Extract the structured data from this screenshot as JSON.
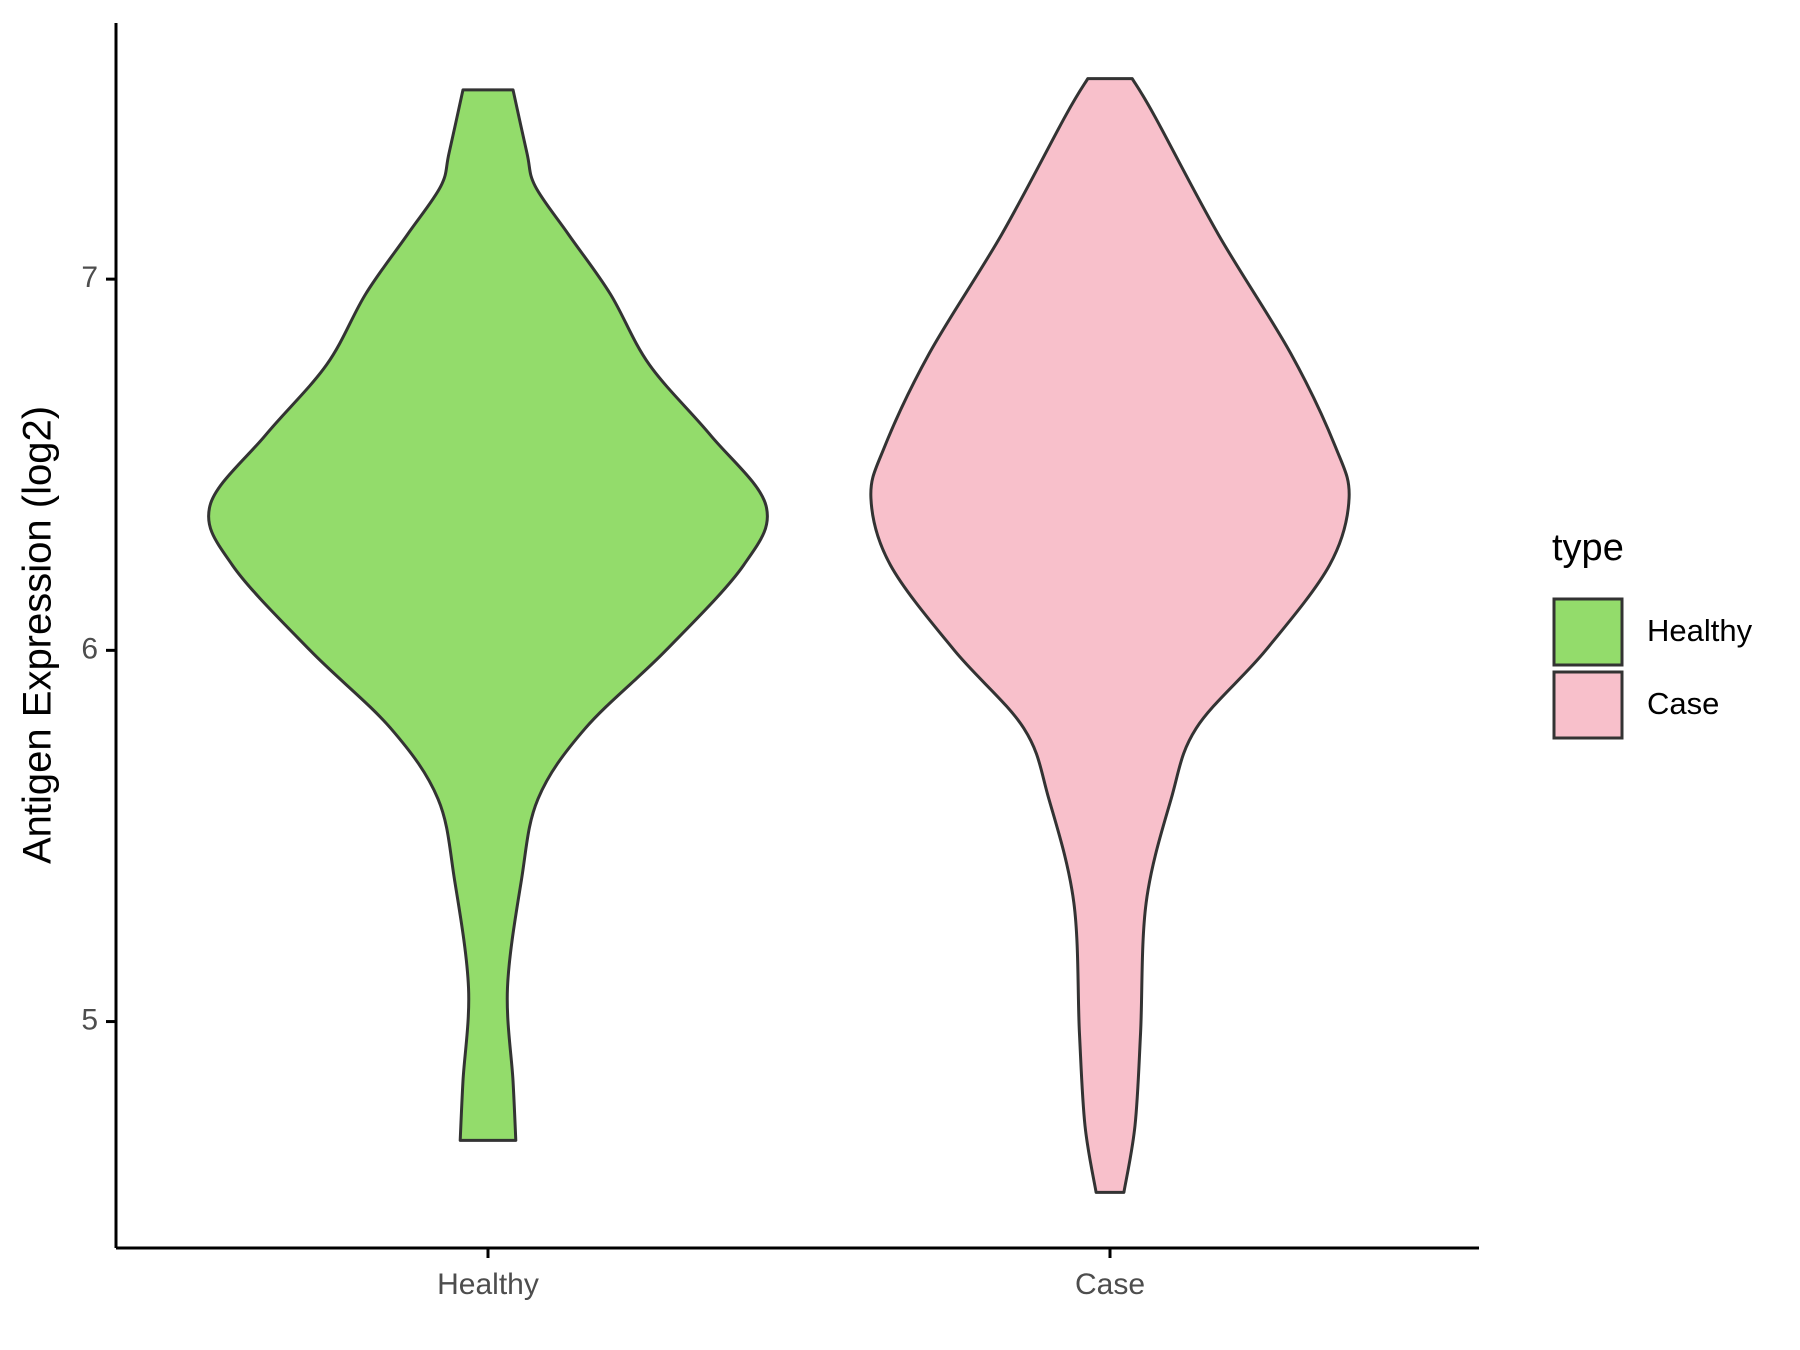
{
  "chart_data": {
    "type": "violin",
    "ylabel": "Antigen Expression (log2)",
    "categories": [
      "Healthy",
      "Case"
    ],
    "ylim": [
      4.39,
      7.69
    ],
    "yticks": [
      5,
      6,
      7
    ],
    "legend_title": "type",
    "legend_position": "right",
    "series": [
      {
        "name": "Healthy",
        "color": "#93dc6b",
        "y": [
          7.51,
          7.34,
          7.25,
          7.12,
          6.96,
          6.77,
          6.58,
          6.39,
          6.23,
          6.0,
          5.79,
          5.6,
          5.38,
          5.09,
          4.84,
          4.68
        ],
        "density": [
          0.09,
          0.14,
          0.17,
          0.29,
          0.44,
          0.58,
          0.8,
          1.0,
          0.92,
          0.64,
          0.35,
          0.18,
          0.12,
          0.07,
          0.09,
          0.1
        ]
      },
      {
        "name": "Case",
        "color": "#f8c0cb",
        "y": [
          7.54,
          7.44,
          7.12,
          6.8,
          6.55,
          6.41,
          6.23,
          6.0,
          5.79,
          5.6,
          5.32,
          4.97,
          4.72,
          4.54
        ],
        "density": [
          0.08,
          0.16,
          0.39,
          0.65,
          0.81,
          0.86,
          0.79,
          0.56,
          0.31,
          0.22,
          0.13,
          0.11,
          0.09,
          0.05
        ]
      }
    ]
  }
}
